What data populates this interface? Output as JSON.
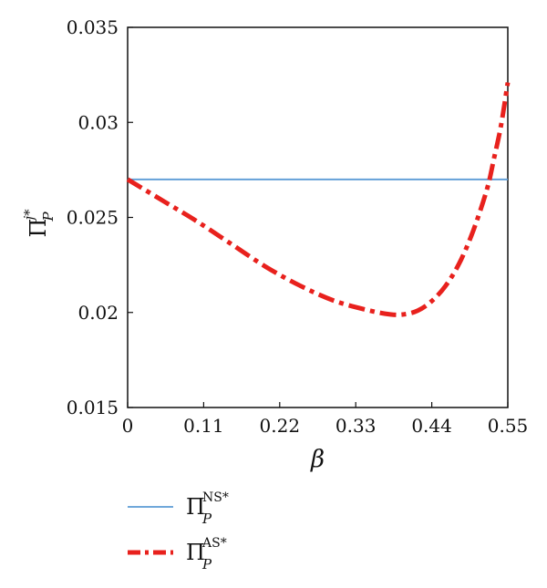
{
  "chart_data": {
    "type": "line",
    "xlabel": "β",
    "ylabel": {
      "symbol": "Π",
      "sub": "P",
      "sup": "j*"
    },
    "xlim": [
      0,
      0.55
    ],
    "ylim": [
      0.015,
      0.035
    ],
    "x_ticks": [
      "0",
      "0.11",
      "0.22",
      "0.33",
      "0.44",
      "0.55"
    ],
    "y_ticks": [
      "0.015",
      "0.02",
      "0.025",
      "0.03",
      "0.035"
    ],
    "grid": false,
    "legend_placement": "bottom",
    "series": [
      {
        "name": {
          "symbol": "Π",
          "sub": "P",
          "sup": "NS*"
        },
        "color": "#5b9bd5",
        "style": "solid",
        "x": [
          0,
          0.55
        ],
        "y": [
          0.027,
          0.027
        ]
      },
      {
        "name": {
          "symbol": "Π",
          "sub": "P",
          "sup": "AS*"
        },
        "color": "#e8211d",
        "style": "dash-dot",
        "x": [
          0,
          0.05,
          0.1,
          0.15,
          0.2,
          0.25,
          0.3,
          0.35,
          0.38,
          0.4,
          0.42,
          0.44,
          0.46,
          0.48,
          0.5,
          0.52,
          0.53,
          0.54,
          0.55
        ],
        "y": [
          0.027,
          0.0259,
          0.0248,
          0.0236,
          0.0224,
          0.0214,
          0.0206,
          0.0201,
          0.0199,
          0.0199,
          0.0201,
          0.0206,
          0.0214,
          0.0226,
          0.0243,
          0.0265,
          0.0281,
          0.0298,
          0.0321
        ]
      }
    ]
  }
}
